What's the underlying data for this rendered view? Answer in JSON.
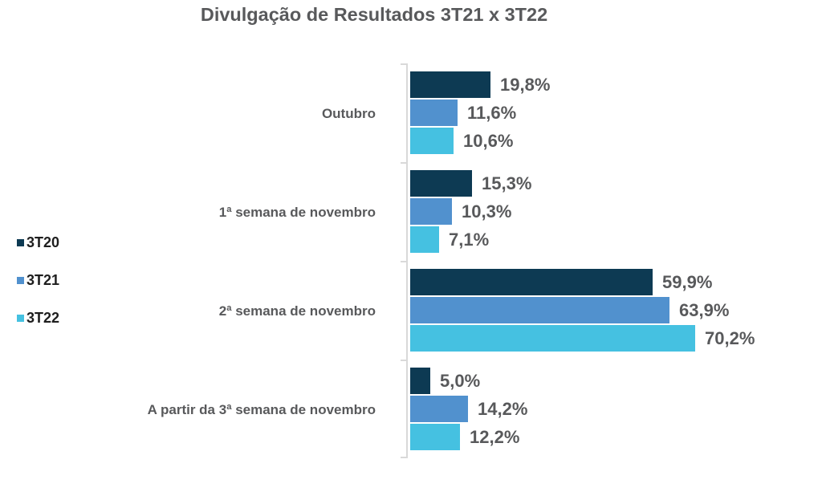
{
  "title": "Divulgação de Resultados 3T21 x 3T22",
  "colors": {
    "text": "#58595B",
    "legend_text": "#1E1E1E",
    "axis": "#D9D9D9",
    "series": {
      "3T20": "#0D3A53",
      "3T21": "#5191CE",
      "3T22": "#45C1E1"
    }
  },
  "legend": {
    "items": [
      "3T20",
      "3T21",
      "3T22"
    ]
  },
  "chart_data": {
    "type": "bar",
    "orientation": "horizontal",
    "title": "Divulgação de Resultados 3T21 x 3T22",
    "categories": [
      "Outubro",
      "1ª semana de novembro",
      "2ª semana de novembro",
      "A partir da 3ª semana de novembro"
    ],
    "series": [
      {
        "name": "3T20",
        "color": "#0D3A53",
        "values": [
          19.8,
          15.3,
          59.9,
          5.0
        ],
        "labels": [
          "19,8%",
          "15,3%",
          "59,9%",
          "5,0%"
        ]
      },
      {
        "name": "3T21",
        "color": "#5191CE",
        "values": [
          11.6,
          10.3,
          63.9,
          14.2
        ],
        "labels": [
          "11,6%",
          "10,3%",
          "63,9%",
          "14,2%"
        ]
      },
      {
        "name": "3T22",
        "color": "#45C1E1",
        "values": [
          10.6,
          7.1,
          70.2,
          12.2
        ],
        "labels": [
          "10,6%",
          "7,1%",
          "70,2%",
          "12,2%"
        ]
      }
    ],
    "value_suffix": "%",
    "xlim": [
      0,
      100
    ],
    "legend_position": "left",
    "grid": false
  }
}
